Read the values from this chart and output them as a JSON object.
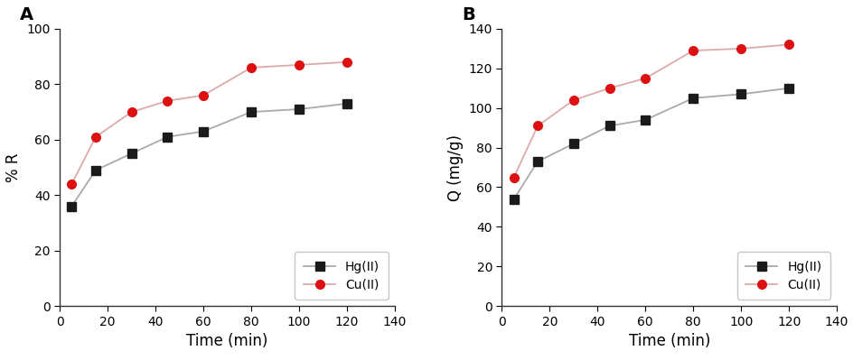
{
  "time": [
    5,
    15,
    30,
    45,
    60,
    80,
    100,
    120
  ],
  "panel_A": {
    "Hg_II": [
      36,
      49,
      55,
      61,
      63,
      70,
      71,
      73
    ],
    "Cu_II": [
      44,
      61,
      70,
      74,
      76,
      86,
      87,
      88
    ]
  },
  "panel_B": {
    "Hg_II": [
      54,
      73,
      82,
      91,
      94,
      105,
      107,
      110
    ],
    "Cu_II": [
      65,
      91,
      104,
      110,
      115,
      129,
      130,
      132
    ]
  },
  "hg_color": "#1a1a1a",
  "cu_color": "#dd1111",
  "line_color_hg": "#aaaaaa",
  "line_color_cu": "#ddaaaa",
  "xlabel": "Time (min)",
  "ylabel_A": "% R",
  "ylabel_B": "Q (mg/g)",
  "label_A": "A",
  "label_B": "B",
  "legend_hg": "Hg(II)",
  "legend_cu": "Cu(II)",
  "xlim": [
    0,
    140
  ],
  "ylim_A": [
    0,
    100
  ],
  "ylim_B": [
    0,
    140
  ],
  "xticks": [
    0,
    20,
    40,
    60,
    80,
    100,
    120,
    140
  ],
  "yticks_A": [
    0,
    20,
    40,
    60,
    80,
    100
  ],
  "yticks_B": [
    0,
    20,
    40,
    60,
    80,
    100,
    120,
    140
  ],
  "marker_size": 7,
  "line_width": 1.3
}
